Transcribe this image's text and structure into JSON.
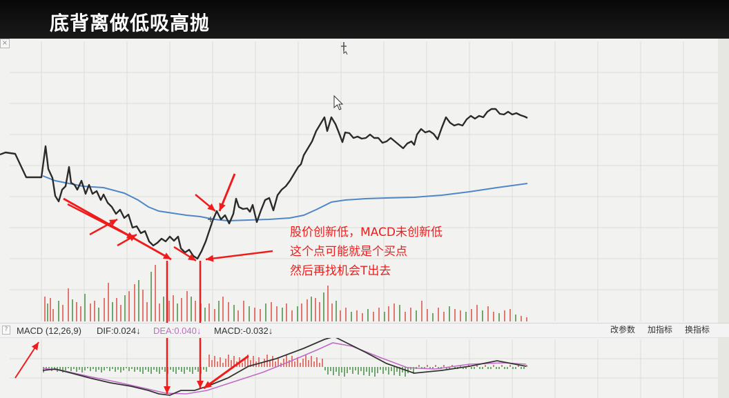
{
  "title": "底背离做低吸高抛",
  "close_glyph": "×",
  "help_glyph": "?",
  "indicator": {
    "name": "MACD (12,26,9)",
    "dif": "DIF:0.024↓",
    "dea": "DEA:0.040↓",
    "macd": "MACD:-0.032↓"
  },
  "toolbar": {
    "change_params": "改参数",
    "add_indicator": "加指标",
    "switch_indicator": "换指标"
  },
  "annotation_lines": [
    "股价创新低，MACD未创新低",
    "这个点可能就是个买点",
    "然后再找机会T出去"
  ],
  "colors": {
    "price_line": "#2a2a2a",
    "average_line": "#4f86c6",
    "annotation": "#ee1c1c",
    "dif_line": "#333333",
    "dea_line": "#c06ac8",
    "volume_up": "#e0776f",
    "volume_down": "#6fa56f",
    "title_bg": "#111111",
    "chart_bg": "#f2f3f0"
  },
  "icons": [
    "close-icon",
    "help-icon",
    "mouse-cursor-icon",
    "crosshair-cursor-icon",
    "move-cursor-icon"
  ]
}
